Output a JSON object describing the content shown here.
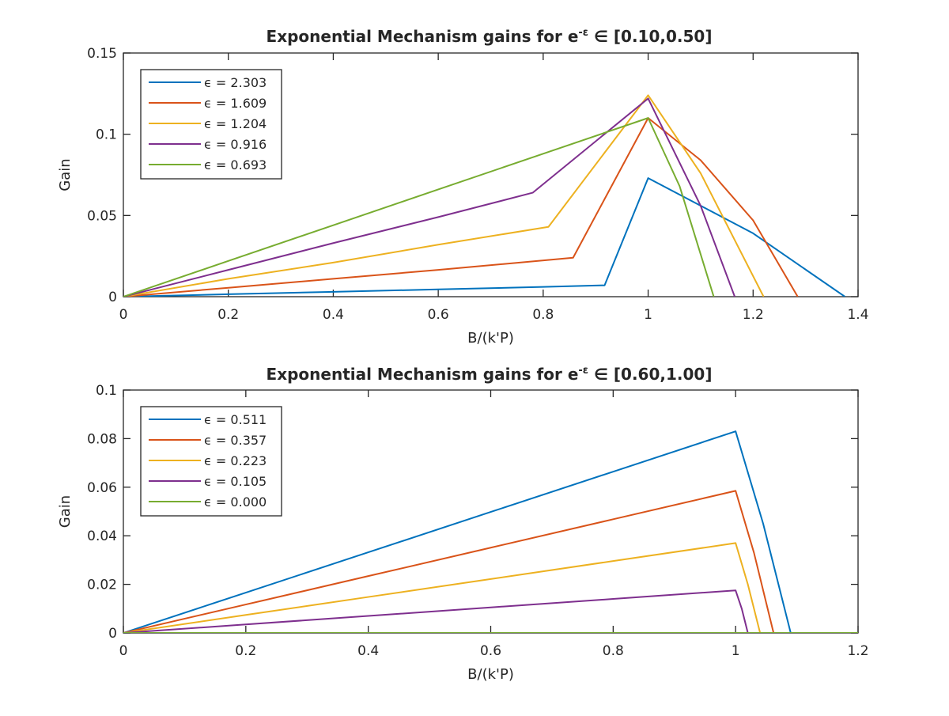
{
  "chart_data": [
    {
      "type": "line",
      "title_prefix": "Exponential Mechanism gains for e",
      "title_sup": "-ε",
      "title_suffix": " ∈ [0.10,0.50]",
      "xlabel": "B/(k'P)",
      "ylabel": "Gain",
      "xlim": [
        0,
        1.4
      ],
      "ylim": [
        0,
        0.15
      ],
      "xticks": [
        0,
        0.2,
        0.4,
        0.6,
        0.8,
        1,
        1.2,
        1.4
      ],
      "xtick_labels": [
        "0",
        "0.2",
        "0.4",
        "0.6",
        "0.8",
        "1",
        "1.2",
        "1.4"
      ],
      "yticks": [
        0,
        0.05,
        0.1,
        0.15
      ],
      "ytick_labels": [
        "0",
        "0.05",
        "0.1",
        "0.15"
      ],
      "legend_position": "top-left",
      "series": [
        {
          "name": "ϵ = 2.303",
          "color": "#0072BD",
          "points": [
            [
              0,
              0
            ],
            [
              0.2,
              0.0015
            ],
            [
              0.4,
              0.003
            ],
            [
              0.6,
              0.0045
            ],
            [
              0.8,
              0.006
            ],
            [
              0.917,
              0.007
            ],
            [
              1.0,
              0.073
            ],
            [
              1.2,
              0.039
            ],
            [
              1.375,
              0
            ]
          ]
        },
        {
          "name": "ϵ = 1.609",
          "color": "#D95319",
          "points": [
            [
              0,
              0
            ],
            [
              0.2,
              0.0055
            ],
            [
              0.4,
              0.011
            ],
            [
              0.6,
              0.0165
            ],
            [
              0.857,
              0.024
            ],
            [
              1.0,
              0.11
            ],
            [
              1.1,
              0.084
            ],
            [
              1.2,
              0.047
            ],
            [
              1.285,
              0
            ]
          ]
        },
        {
          "name": "ϵ = 1.204",
          "color": "#EDB120",
          "points": [
            [
              0,
              0
            ],
            [
              0.2,
              0.011
            ],
            [
              0.4,
              0.021
            ],
            [
              0.6,
              0.032
            ],
            [
              0.81,
              0.043
            ],
            [
              1.0,
              0.124
            ],
            [
              1.1,
              0.076
            ],
            [
              1.22,
              0
            ]
          ]
        },
        {
          "name": "ϵ = 0.916",
          "color": "#7E2F8E",
          "points": [
            [
              0,
              0
            ],
            [
              0.2,
              0.0165
            ],
            [
              0.4,
              0.033
            ],
            [
              0.6,
              0.049
            ],
            [
              0.78,
              0.064
            ],
            [
              1.0,
              0.122
            ],
            [
              1.1,
              0.056
            ],
            [
              1.165,
              0
            ]
          ]
        },
        {
          "name": "ϵ = 0.693",
          "color": "#77AC30",
          "points": [
            [
              0,
              0
            ],
            [
              0.2,
              0.022
            ],
            [
              0.4,
              0.044
            ],
            [
              0.6,
              0.066
            ],
            [
              0.8,
              0.088
            ],
            [
              1.0,
              0.11
            ],
            [
              1.06,
              0.068
            ],
            [
              1.125,
              0
            ]
          ]
        }
      ]
    },
    {
      "type": "line",
      "title_prefix": "Exponential Mechanism gains for e",
      "title_sup": "-ε",
      "title_suffix": " ∈ [0.60,1.00]",
      "xlabel": "B/(k'P)",
      "ylabel": "Gain",
      "xlim": [
        0,
        1.2
      ],
      "ylim": [
        0,
        0.1
      ],
      "xticks": [
        0,
        0.2,
        0.4,
        0.6,
        0.8,
        1,
        1.2
      ],
      "xtick_labels": [
        "0",
        "0.2",
        "0.4",
        "0.6",
        "0.8",
        "1",
        "1.2"
      ],
      "yticks": [
        0,
        0.02,
        0.04,
        0.06,
        0.08,
        0.1
      ],
      "ytick_labels": [
        "0",
        "0.02",
        "0.04",
        "0.06",
        "0.08",
        "0.1"
      ],
      "legend_position": "top-left",
      "series": [
        {
          "name": "ϵ = 0.511",
          "color": "#0072BD",
          "points": [
            [
              0,
              0
            ],
            [
              0.2,
              0.0166
            ],
            [
              0.4,
              0.0332
            ],
            [
              0.6,
              0.0498
            ],
            [
              0.8,
              0.0664
            ],
            [
              1.0,
              0.083
            ],
            [
              1.045,
              0.045
            ],
            [
              1.09,
              0
            ]
          ]
        },
        {
          "name": "ϵ = 0.357",
          "color": "#D95319",
          "points": [
            [
              0,
              0
            ],
            [
              0.2,
              0.0117
            ],
            [
              0.4,
              0.0234
            ],
            [
              0.6,
              0.0351
            ],
            [
              0.8,
              0.0468
            ],
            [
              1.0,
              0.0585
            ],
            [
              1.03,
              0.033
            ],
            [
              1.062,
              0
            ]
          ]
        },
        {
          "name": "ϵ = 0.223",
          "color": "#EDB120",
          "points": [
            [
              0,
              0
            ],
            [
              0.2,
              0.0074
            ],
            [
              0.4,
              0.0148
            ],
            [
              0.6,
              0.0222
            ],
            [
              0.8,
              0.0296
            ],
            [
              1.0,
              0.037
            ],
            [
              1.02,
              0.02
            ],
            [
              1.04,
              0
            ]
          ]
        },
        {
          "name": "ϵ = 0.105",
          "color": "#7E2F8E",
          "points": [
            [
              0,
              0
            ],
            [
              0.2,
              0.0035
            ],
            [
              0.4,
              0.007
            ],
            [
              0.6,
              0.0105
            ],
            [
              0.8,
              0.014
            ],
            [
              1.0,
              0.0175
            ],
            [
              1.01,
              0.01
            ],
            [
              1.02,
              0
            ]
          ]
        },
        {
          "name": "ϵ = 0.000",
          "color": "#77AC30",
          "points": [
            [
              0,
              0
            ],
            [
              1.0,
              0
            ],
            [
              1.2,
              0
            ]
          ]
        }
      ]
    }
  ]
}
